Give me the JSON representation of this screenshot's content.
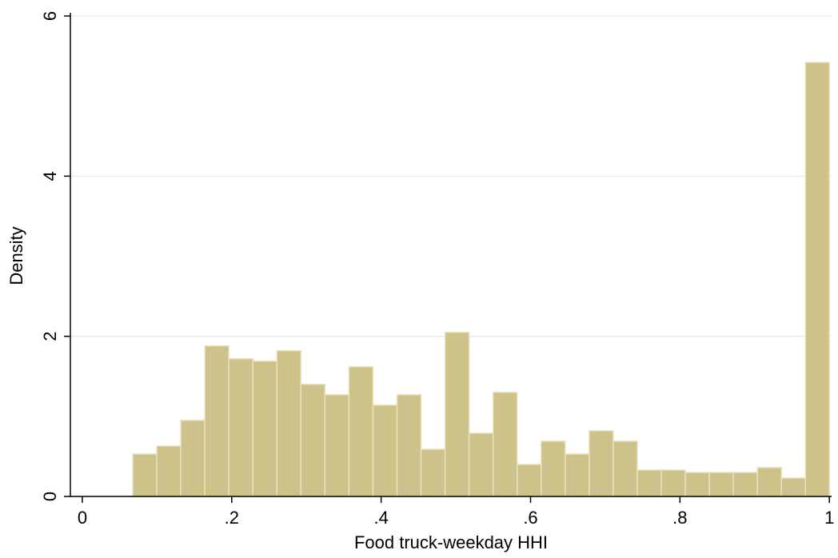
{
  "chart_data": {
    "type": "histogram",
    "x_label": "Food truck-weekday HHI",
    "y_label": "Density",
    "bins": [
      0.0675,
      0.0997,
      0.1318,
      0.164,
      0.1961,
      0.2283,
      0.2605,
      0.2926,
      0.3248,
      0.3569,
      0.3891,
      0.4213,
      0.4534,
      0.4856,
      0.5177,
      0.5499,
      0.5821,
      0.6142,
      0.6464,
      0.6785,
      0.7107,
      0.7429,
      0.775,
      0.8072,
      0.8393,
      0.8715,
      0.9037,
      0.9358,
      0.968,
      1.0
    ],
    "values": [
      0.53,
      0.63,
      0.95,
      1.88,
      1.72,
      1.69,
      1.82,
      1.4,
      1.27,
      1.62,
      1.14,
      1.27,
      0.59,
      2.05,
      0.79,
      1.3,
      0.4,
      0.69,
      0.53,
      0.82,
      0.69,
      0.33,
      0.33,
      0.3,
      0.3,
      0.3,
      0.36,
      0.23,
      5.42
    ],
    "color": "#cdc28a",
    "edge_color": "#e9e2bd",
    "xlim": [
      -0.016,
      1.003
    ],
    "ylim": [
      0,
      6
    ],
    "xticks": [
      0,
      {
        "value": 0.2,
        "label": ".2"
      },
      {
        "value": 0.4,
        "label": ".4"
      },
      {
        "value": 0.6,
        "label": ".6"
      },
      {
        "value": 0.8,
        "label": ".8"
      },
      1
    ],
    "yticks": [
      0,
      2,
      4,
      6
    ],
    "grid": true
  }
}
